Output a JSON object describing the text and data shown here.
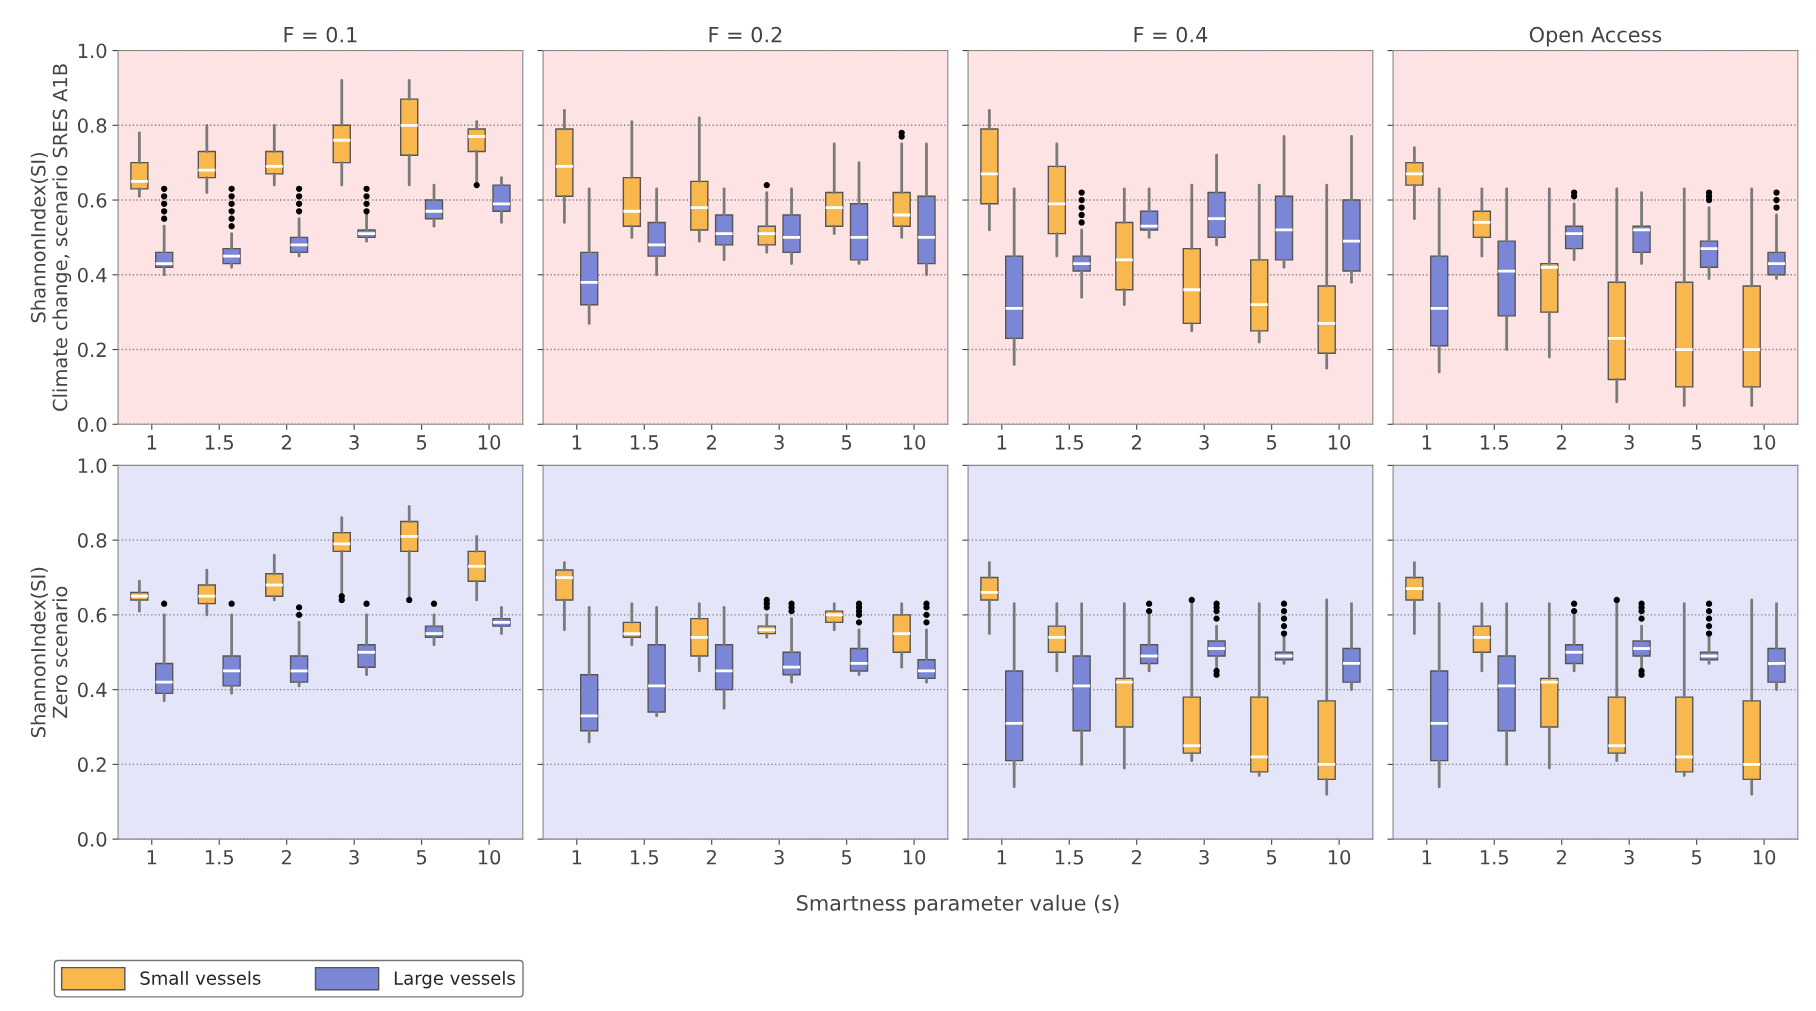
{
  "chart_data": [
    {
      "type": "box",
      "title": "F = 0.1",
      "ylabel": "ShannonIndex(SI)\nClimate change, scenario SRES A1B",
      "legend": "bottom left",
      "categories": [
        "1",
        "1.5",
        "2",
        "3",
        "5",
        "10"
      ],
      "ylim": [
        0,
        1
      ],
      "yticks": [
        {
          "value": 0,
          "label": "0.0"
        },
        {
          "value": 0.2,
          "label": "0.2"
        },
        {
          "value": 0.4,
          "label": "0.4"
        },
        {
          "value": 0.6,
          "label": "0.6"
        },
        {
          "value": 0.8,
          "label": "0.8"
        },
        {
          "value": 1,
          "label": "1.0"
        }
      ],
      "grid": "y",
      "series": [
        {
          "name": "Small vessels",
          "color": "#f8b84e",
          "boxes": [
            {
              "low": 0.61,
              "q1": 0.63,
              "median": 0.65,
              "q3": 0.7,
              "high": 0.78
            },
            {
              "low": 0.62,
              "q1": 0.66,
              "median": 0.68,
              "q3": 0.73,
              "high": 0.8
            },
            {
              "low": 0.64,
              "q1": 0.67,
              "median": 0.69,
              "q3": 0.73,
              "high": 0.8
            },
            {
              "low": 0.64,
              "q1": 0.7,
              "median": 0.76,
              "q3": 0.8,
              "high": 0.92
            },
            {
              "low": 0.64,
              "q1": 0.72,
              "median": 0.8,
              "q3": 0.87,
              "high": 0.92
            },
            {
              "low": 0.65,
              "q1": 0.73,
              "median": 0.77,
              "q3": 0.79,
              "high": 0.81,
              "outliers": [
                0.64
              ]
            }
          ]
        },
        {
          "name": "Large vessels",
          "color": "#7b86d6",
          "boxes": [
            {
              "low": 0.4,
              "q1": 0.42,
              "median": 0.43,
              "q3": 0.46,
              "high": 0.53,
              "outliers": [
                0.55,
                0.57,
                0.59,
                0.61,
                0.63
              ]
            },
            {
              "low": 0.42,
              "q1": 0.43,
              "median": 0.45,
              "q3": 0.47,
              "high": 0.51,
              "outliers": [
                0.53,
                0.55,
                0.57,
                0.59,
                0.61,
                0.63
              ]
            },
            {
              "low": 0.45,
              "q1": 0.46,
              "median": 0.48,
              "q3": 0.5,
              "high": 0.55,
              "outliers": [
                0.57,
                0.59,
                0.61,
                0.63
              ]
            },
            {
              "low": 0.49,
              "q1": 0.5,
              "median": 0.51,
              "q3": 0.52,
              "high": 0.56,
              "outliers": [
                0.57,
                0.59,
                0.61,
                0.63
              ]
            },
            {
              "low": 0.53,
              "q1": 0.55,
              "median": 0.57,
              "q3": 0.6,
              "high": 0.64
            },
            {
              "low": 0.54,
              "q1": 0.57,
              "median": 0.59,
              "q3": 0.64,
              "high": 0.66
            }
          ]
        }
      ]
    },
    {
      "type": "box",
      "title": "F = 0.2",
      "categories": [
        "1",
        "1.5",
        "2",
        "3",
        "5",
        "10"
      ],
      "ylim": [
        0,
        1
      ],
      "yticks": [
        {
          "value": 0,
          "label": null
        },
        {
          "value": 0.2,
          "label": null
        },
        {
          "value": 0.4,
          "label": null
        },
        {
          "value": 0.6,
          "label": null
        },
        {
          "value": 0.8,
          "label": null
        },
        {
          "value": 1,
          "label": null
        }
      ],
      "grid": "y",
      "tick_labels": "x",
      "series": [
        {
          "color": "#f8b84e",
          "boxes": [
            {
              "low": 0.54,
              "q1": 0.61,
              "median": 0.69,
              "q3": 0.79,
              "high": 0.84
            },
            {
              "low": 0.5,
              "q1": 0.53,
              "median": 0.57,
              "q3": 0.66,
              "high": 0.81
            },
            {
              "low": 0.49,
              "q1": 0.52,
              "median": 0.58,
              "q3": 0.65,
              "high": 0.82
            },
            {
              "low": 0.46,
              "q1": 0.48,
              "median": 0.51,
              "q3": 0.53,
              "high": 0.62,
              "outliers": [
                0.64
              ]
            },
            {
              "low": 0.51,
              "q1": 0.53,
              "median": 0.58,
              "q3": 0.62,
              "high": 0.75
            },
            {
              "low": 0.5,
              "q1": 0.53,
              "median": 0.56,
              "q3": 0.62,
              "high": 0.75,
              "outliers": [
                0.77,
                0.78
              ]
            }
          ]
        },
        {
          "color": "#7b86d6",
          "boxes": [
            {
              "low": 0.27,
              "q1": 0.32,
              "median": 0.38,
              "q3": 0.46,
              "high": 0.63
            },
            {
              "low": 0.4,
              "q1": 0.45,
              "median": 0.48,
              "q3": 0.54,
              "high": 0.63
            },
            {
              "low": 0.44,
              "q1": 0.48,
              "median": 0.51,
              "q3": 0.56,
              "high": 0.63
            },
            {
              "low": 0.43,
              "q1": 0.46,
              "median": 0.5,
              "q3": 0.56,
              "high": 0.63
            },
            {
              "low": 0.43,
              "q1": 0.44,
              "median": 0.5,
              "q3": 0.59,
              "high": 0.7
            },
            {
              "low": 0.4,
              "q1": 0.43,
              "median": 0.5,
              "q3": 0.61,
              "high": 0.75
            }
          ]
        }
      ]
    },
    {
      "type": "box",
      "title": "F = 0.4",
      "categories": [
        "1",
        "1.5",
        "2",
        "3",
        "5",
        "10"
      ],
      "ylim": [
        0,
        1
      ],
      "yticks": [
        {
          "value": 0,
          "label": null
        },
        {
          "value": 0.2,
          "label": null
        },
        {
          "value": 0.4,
          "label": null
        },
        {
          "value": 0.6,
          "label": null
        },
        {
          "value": 0.8,
          "label": null
        },
        {
          "value": 1,
          "label": null
        }
      ],
      "grid": "y",
      "tick_labels": "x",
      "series": [
        {
          "color": "#f8b84e",
          "boxes": [
            {
              "low": 0.52,
              "q1": 0.59,
              "median": 0.67,
              "q3": 0.79,
              "high": 0.84
            },
            {
              "low": 0.45,
              "q1": 0.51,
              "median": 0.59,
              "q3": 0.69,
              "high": 0.75
            },
            {
              "low": 0.32,
              "q1": 0.36,
              "median": 0.44,
              "q3": 0.54,
              "high": 0.63
            },
            {
              "low": 0.25,
              "q1": 0.27,
              "median": 0.36,
              "q3": 0.47,
              "high": 0.64
            },
            {
              "low": 0.22,
              "q1": 0.25,
              "median": 0.32,
              "q3": 0.44,
              "high": 0.64
            },
            {
              "low": 0.15,
              "q1": 0.19,
              "median": 0.27,
              "q3": 0.37,
              "high": 0.64
            }
          ]
        },
        {
          "color": "#7b86d6",
          "boxes": [
            {
              "low": 0.16,
              "q1": 0.23,
              "median": 0.31,
              "q3": 0.45,
              "high": 0.63
            },
            {
              "low": 0.34,
              "q1": 0.41,
              "median": 0.43,
              "q3": 0.45,
              "high": 0.52,
              "outliers": [
                0.54,
                0.56,
                0.58,
                0.6,
                0.62
              ]
            },
            {
              "low": 0.5,
              "q1": 0.52,
              "median": 0.53,
              "q3": 0.57,
              "high": 0.63
            },
            {
              "low": 0.48,
              "q1": 0.5,
              "median": 0.55,
              "q3": 0.62,
              "high": 0.72
            },
            {
              "low": 0.42,
              "q1": 0.44,
              "median": 0.52,
              "q3": 0.61,
              "high": 0.77
            },
            {
              "low": 0.38,
              "q1": 0.41,
              "median": 0.49,
              "q3": 0.6,
              "high": 0.77
            }
          ]
        }
      ]
    },
    {
      "type": "box",
      "title": "Open Access",
      "categories": [
        "1",
        "1.5",
        "2",
        "3",
        "5",
        "10"
      ],
      "ylim": [
        0,
        1
      ],
      "yticks": [
        {
          "value": 0,
          "label": null
        },
        {
          "value": 0.2,
          "label": null
        },
        {
          "value": 0.4,
          "label": null
        },
        {
          "value": 0.6,
          "label": null
        },
        {
          "value": 0.8,
          "label": null
        },
        {
          "value": 1,
          "label": null
        }
      ],
      "grid": "y",
      "tick_labels": "x",
      "series": [
        {
          "color": "#f8b84e",
          "boxes": [
            {
              "low": 0.55,
              "q1": 0.64,
              "median": 0.67,
              "q3": 0.7,
              "high": 0.74
            },
            {
              "low": 0.45,
              "q1": 0.5,
              "median": 0.54,
              "q3": 0.57,
              "high": 0.63
            },
            {
              "low": 0.18,
              "q1": 0.3,
              "median": 0.42,
              "q3": 0.43,
              "high": 0.63
            },
            {
              "low": 0.06,
              "q1": 0.12,
              "median": 0.23,
              "q3": 0.38,
              "high": 0.63
            },
            {
              "low": 0.05,
              "q1": 0.1,
              "median": 0.2,
              "q3": 0.38,
              "high": 0.63
            },
            {
              "low": 0.05,
              "q1": 0.1,
              "median": 0.2,
              "q3": 0.37,
              "high": 0.63
            }
          ]
        },
        {
          "color": "#7b86d6",
          "boxes": [
            {
              "low": 0.14,
              "q1": 0.21,
              "median": 0.31,
              "q3": 0.45,
              "high": 0.63
            },
            {
              "low": 0.2,
              "q1": 0.29,
              "median": 0.41,
              "q3": 0.49,
              "high": 0.63
            },
            {
              "low": 0.44,
              "q1": 0.47,
              "median": 0.51,
              "q3": 0.53,
              "high": 0.59,
              "outliers": [
                0.61,
                0.62
              ]
            },
            {
              "low": 0.43,
              "q1": 0.46,
              "median": 0.52,
              "q3": 0.53,
              "high": 0.62
            },
            {
              "low": 0.39,
              "q1": 0.42,
              "median": 0.47,
              "q3": 0.49,
              "high": 0.58,
              "outliers": [
                0.6,
                0.61,
                0.62
              ]
            },
            {
              "low": 0.39,
              "q1": 0.4,
              "median": 0.43,
              "q3": 0.46,
              "high": 0.56,
              "outliers": [
                0.58,
                0.6,
                0.62
              ]
            }
          ]
        }
      ]
    },
    {
      "type": "box",
      "ylabel": "ShannonIndex(SI)\nZero scenario",
      "categories": [
        "1",
        "1.5",
        "2",
        "3",
        "5",
        "10"
      ],
      "ylim": [
        0,
        1
      ],
      "yticks": [
        {
          "value": 0,
          "label": "0.0"
        },
        {
          "value": 0.2,
          "label": "0.2"
        },
        {
          "value": 0.4,
          "label": "0.4"
        },
        {
          "value": 0.6,
          "label": "0.6"
        },
        {
          "value": 0.8,
          "label": "0.8"
        },
        {
          "value": 1,
          "label": "1.0"
        }
      ],
      "grid": "y",
      "series": [
        {
          "color": "#f8b84e",
          "boxes": [
            {
              "low": 0.61,
              "q1": 0.64,
              "median": 0.65,
              "q3": 0.66,
              "high": 0.69
            },
            {
              "low": 0.6,
              "q1": 0.63,
              "median": 0.65,
              "q3": 0.68,
              "high": 0.72
            },
            {
              "low": 0.64,
              "q1": 0.65,
              "median": 0.68,
              "q3": 0.71,
              "high": 0.76
            },
            {
              "low": 0.66,
              "q1": 0.77,
              "median": 0.79,
              "q3": 0.82,
              "high": 0.86,
              "outliers": [
                0.64,
                0.65
              ]
            },
            {
              "low": 0.65,
              "q1": 0.77,
              "median": 0.81,
              "q3": 0.85,
              "high": 0.89,
              "outliers": [
                0.64
              ]
            },
            {
              "low": 0.64,
              "q1": 0.69,
              "median": 0.73,
              "q3": 0.77,
              "high": 0.81
            }
          ]
        },
        {
          "color": "#7b86d6",
          "boxes": [
            {
              "low": 0.37,
              "q1": 0.39,
              "median": 0.42,
              "q3": 0.47,
              "high": 0.6,
              "outliers": [
                0.63
              ]
            },
            {
              "low": 0.39,
              "q1": 0.41,
              "median": 0.45,
              "q3": 0.49,
              "high": 0.6,
              "outliers": [
                0.63
              ]
            },
            {
              "low": 0.41,
              "q1": 0.42,
              "median": 0.45,
              "q3": 0.49,
              "high": 0.58,
              "outliers": [
                0.6,
                0.62
              ]
            },
            {
              "low": 0.44,
              "q1": 0.46,
              "median": 0.5,
              "q3": 0.52,
              "high": 0.6,
              "outliers": [
                0.63
              ]
            },
            {
              "low": 0.52,
              "q1": 0.54,
              "median": 0.55,
              "q3": 0.57,
              "high": 0.6,
              "outliers": [
                0.63
              ]
            },
            {
              "low": 0.55,
              "q1": 0.57,
              "median": 0.58,
              "q3": 0.59,
              "high": 0.62
            }
          ]
        }
      ]
    },
    {
      "type": "box",
      "xlabel": "Smartness parameter value (s)",
      "categories": [
        "1",
        "1.5",
        "2",
        "3",
        "5",
        "10"
      ],
      "ylim": [
        0,
        1
      ],
      "yticks": [
        {
          "value": 0,
          "label": null
        },
        {
          "value": 0.2,
          "label": null
        },
        {
          "value": 0.4,
          "label": null
        },
        {
          "value": 0.6,
          "label": null
        },
        {
          "value": 0.8,
          "label": null
        },
        {
          "value": 1,
          "label": null
        }
      ],
      "grid": "y",
      "tick_labels": "x",
      "series": [
        {
          "color": "#f8b84e",
          "boxes": [
            {
              "low": 0.56,
              "q1": 0.64,
              "median": 0.7,
              "q3": 0.72,
              "high": 0.74
            },
            {
              "low": 0.52,
              "q1": 0.54,
              "median": 0.55,
              "q3": 0.58,
              "high": 0.63
            },
            {
              "low": 0.45,
              "q1": 0.49,
              "median": 0.54,
              "q3": 0.59,
              "high": 0.63
            },
            {
              "low": 0.54,
              "q1": 0.55,
              "median": 0.56,
              "q3": 0.57,
              "high": 0.6,
              "outliers": [
                0.62,
                0.63,
                0.64
              ]
            },
            {
              "low": 0.56,
              "q1": 0.58,
              "median": 0.6,
              "q3": 0.61,
              "high": 0.63
            },
            {
              "low": 0.46,
              "q1": 0.5,
              "median": 0.55,
              "q3": 0.6,
              "high": 0.63
            }
          ]
        },
        {
          "color": "#7b86d6",
          "boxes": [
            {
              "low": 0.26,
              "q1": 0.29,
              "median": 0.33,
              "q3": 0.44,
              "high": 0.62
            },
            {
              "low": 0.33,
              "q1": 0.34,
              "median": 0.41,
              "q3": 0.52,
              "high": 0.62
            },
            {
              "low": 0.35,
              "q1": 0.4,
              "median": 0.45,
              "q3": 0.52,
              "high": 0.62
            },
            {
              "low": 0.42,
              "q1": 0.44,
              "median": 0.46,
              "q3": 0.5,
              "high": 0.59,
              "outliers": [
                0.61,
                0.62,
                0.63
              ]
            },
            {
              "low": 0.44,
              "q1": 0.45,
              "median": 0.47,
              "q3": 0.51,
              "high": 0.56,
              "outliers": [
                0.58,
                0.6,
                0.61,
                0.62,
                0.63
              ]
            },
            {
              "low": 0.42,
              "q1": 0.43,
              "median": 0.45,
              "q3": 0.48,
              "high": 0.56,
              "outliers": [
                0.58,
                0.6,
                0.62,
                0.63
              ]
            }
          ]
        }
      ]
    },
    {
      "type": "box",
      "categories": [
        "1",
        "1.5",
        "2",
        "3",
        "5",
        "10"
      ],
      "ylim": [
        0,
        1
      ],
      "yticks": [
        {
          "value": 0,
          "label": null
        },
        {
          "value": 0.2,
          "label": null
        },
        {
          "value": 0.4,
          "label": null
        },
        {
          "value": 0.6,
          "label": null
        },
        {
          "value": 0.8,
          "label": null
        },
        {
          "value": 1,
          "label": null
        }
      ],
      "grid": "y",
      "tick_labels": "x",
      "series": [
        {
          "color": "#f8b84e",
          "boxes": [
            {
              "low": 0.55,
              "q1": 0.64,
              "median": 0.66,
              "q3": 0.7,
              "high": 0.74
            },
            {
              "low": 0.45,
              "q1": 0.5,
              "median": 0.54,
              "q3": 0.57,
              "high": 0.63
            },
            {
              "low": 0.19,
              "q1": 0.3,
              "median": 0.42,
              "q3": 0.43,
              "high": 0.63
            },
            {
              "low": 0.21,
              "q1": 0.23,
              "median": 0.25,
              "q3": 0.38,
              "high": 0.63,
              "outliers": [
                0.64
              ]
            },
            {
              "low": 0.17,
              "q1": 0.18,
              "median": 0.22,
              "q3": 0.38,
              "high": 0.63
            },
            {
              "low": 0.12,
              "q1": 0.16,
              "median": 0.2,
              "q3": 0.37,
              "high": 0.64
            }
          ]
        },
        {
          "color": "#7b86d6",
          "boxes": [
            {
              "low": 0.14,
              "q1": 0.21,
              "median": 0.31,
              "q3": 0.45,
              "high": 0.63
            },
            {
              "low": 0.2,
              "q1": 0.29,
              "median": 0.41,
              "q3": 0.49,
              "high": 0.63
            },
            {
              "low": 0.45,
              "q1": 0.47,
              "median": 0.49,
              "q3": 0.52,
              "high": 0.6,
              "outliers": [
                0.61,
                0.63
              ]
            },
            {
              "low": 0.46,
              "q1": 0.49,
              "median": 0.51,
              "q3": 0.53,
              "high": 0.57,
              "outliers": [
                0.44,
                0.45,
                0.59,
                0.61,
                0.62,
                0.63
              ]
            },
            {
              "low": 0.47,
              "q1": 0.48,
              "median": 0.49,
              "q3": 0.5,
              "high": 0.54,
              "outliers": [
                0.55,
                0.57,
                0.59,
                0.61,
                0.63
              ]
            },
            {
              "low": 0.4,
              "q1": 0.42,
              "median": 0.47,
              "q3": 0.51,
              "high": 0.63
            }
          ]
        }
      ]
    },
    {
      "type": "box",
      "categories": [
        "1",
        "1.5",
        "2",
        "3",
        "5",
        "10"
      ],
      "ylim": [
        0,
        1
      ],
      "yticks": [
        {
          "value": 0,
          "label": null
        },
        {
          "value": 0.2,
          "label": null
        },
        {
          "value": 0.4,
          "label": null
        },
        {
          "value": 0.6,
          "label": null
        },
        {
          "value": 0.8,
          "label": null
        },
        {
          "value": 1,
          "label": null
        }
      ],
      "grid": "y",
      "tick_labels": "x",
      "series": [
        {
          "color": "#f8b84e",
          "boxes": [
            {
              "low": 0.55,
              "q1": 0.64,
              "median": 0.67,
              "q3": 0.7,
              "high": 0.74
            },
            {
              "low": 0.45,
              "q1": 0.5,
              "median": 0.54,
              "q3": 0.57,
              "high": 0.63
            },
            {
              "low": 0.19,
              "q1": 0.3,
              "median": 0.42,
              "q3": 0.43,
              "high": 0.63
            },
            {
              "low": 0.21,
              "q1": 0.23,
              "median": 0.25,
              "q3": 0.38,
              "high": 0.63,
              "outliers": [
                0.64
              ]
            },
            {
              "low": 0.17,
              "q1": 0.18,
              "median": 0.22,
              "q3": 0.38,
              "high": 0.63
            },
            {
              "low": 0.12,
              "q1": 0.16,
              "median": 0.2,
              "q3": 0.37,
              "high": 0.64
            }
          ]
        },
        {
          "color": "#7b86d6",
          "boxes": [
            {
              "low": 0.14,
              "q1": 0.21,
              "median": 0.31,
              "q3": 0.45,
              "high": 0.63
            },
            {
              "low": 0.2,
              "q1": 0.29,
              "median": 0.41,
              "q3": 0.49,
              "high": 0.63
            },
            {
              "low": 0.45,
              "q1": 0.47,
              "median": 0.5,
              "q3": 0.52,
              "high": 0.6,
              "outliers": [
                0.61,
                0.63
              ]
            },
            {
              "low": 0.46,
              "q1": 0.49,
              "median": 0.51,
              "q3": 0.53,
              "high": 0.57,
              "outliers": [
                0.44,
                0.45,
                0.59,
                0.61,
                0.62,
                0.63
              ]
            },
            {
              "low": 0.47,
              "q1": 0.48,
              "median": 0.49,
              "q3": 0.5,
              "high": 0.54,
              "outliers": [
                0.55,
                0.57,
                0.59,
                0.61,
                0.63
              ]
            },
            {
              "low": 0.4,
              "q1": 0.42,
              "median": 0.47,
              "q3": 0.51,
              "high": 0.63
            }
          ]
        }
      ]
    }
  ]
}
